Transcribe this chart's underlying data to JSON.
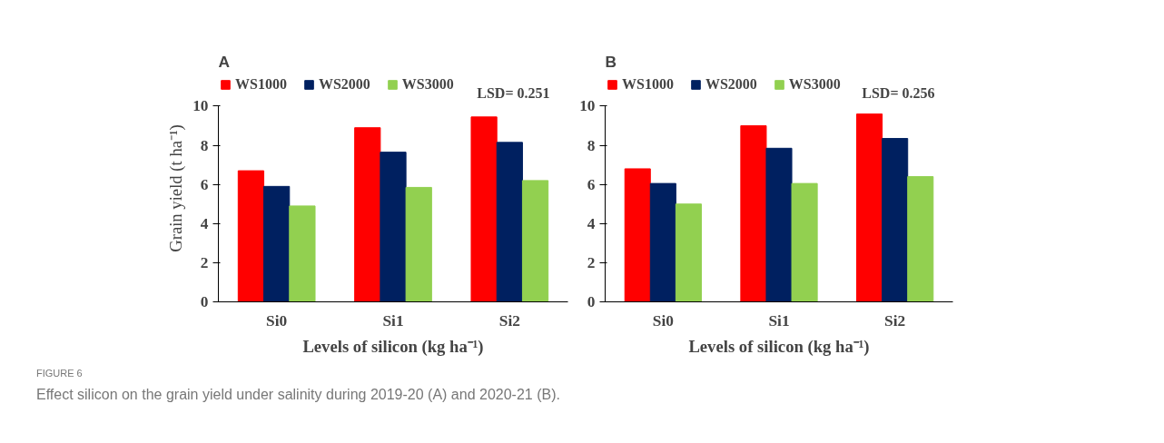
{
  "chart_data": [
    {
      "type": "bar",
      "title": "A",
      "xlabel": "Levels of silicon (kg ha⁻¹)",
      "ylabel": "Grain yield (t ha⁻¹)",
      "categories": [
        "Si0",
        "Si1",
        "Si2"
      ],
      "series": [
        {
          "name": "WS1000",
          "color": "#ff0000",
          "values": [
            6.7,
            8.9,
            9.45
          ]
        },
        {
          "name": "WS2000",
          "color": "#002060",
          "values": [
            5.9,
            7.65,
            8.15
          ]
        },
        {
          "name": "WS3000",
          "color": "#92d050",
          "values": [
            4.9,
            5.85,
            6.2
          ]
        }
      ],
      "ylim": [
        0,
        10
      ],
      "yticks": [
        0,
        2,
        4,
        6,
        8,
        10
      ],
      "grid": false,
      "legend": "top",
      "annotations": [
        "LSD= 0.251",
        "FIGURE 6",
        "Effect silicon on the grain yield under salinity during 2019-20 (A) and 2020-21 (B)."
      ]
    },
    {
      "type": "bar",
      "title": "B",
      "xlabel": "Levels of silicon (kg ha⁻¹)",
      "categories": [
        "Si0",
        "Si1",
        "Si2"
      ],
      "series": [
        {
          "name": "WS1000",
          "color": "#ff0000",
          "values": [
            6.8,
            9.0,
            9.6
          ]
        },
        {
          "name": "WS2000",
          "color": "#002060",
          "values": [
            6.05,
            7.85,
            8.35
          ]
        },
        {
          "name": "WS3000",
          "color": "#92d050",
          "values": [
            5.0,
            6.05,
            6.4
          ]
        }
      ],
      "ylim": [
        0,
        10
      ],
      "yticks": [
        0,
        2,
        4,
        6,
        8,
        10
      ],
      "grid": false,
      "legend": "top",
      "annotations": [
        "LSD= 0.256"
      ]
    }
  ]
}
